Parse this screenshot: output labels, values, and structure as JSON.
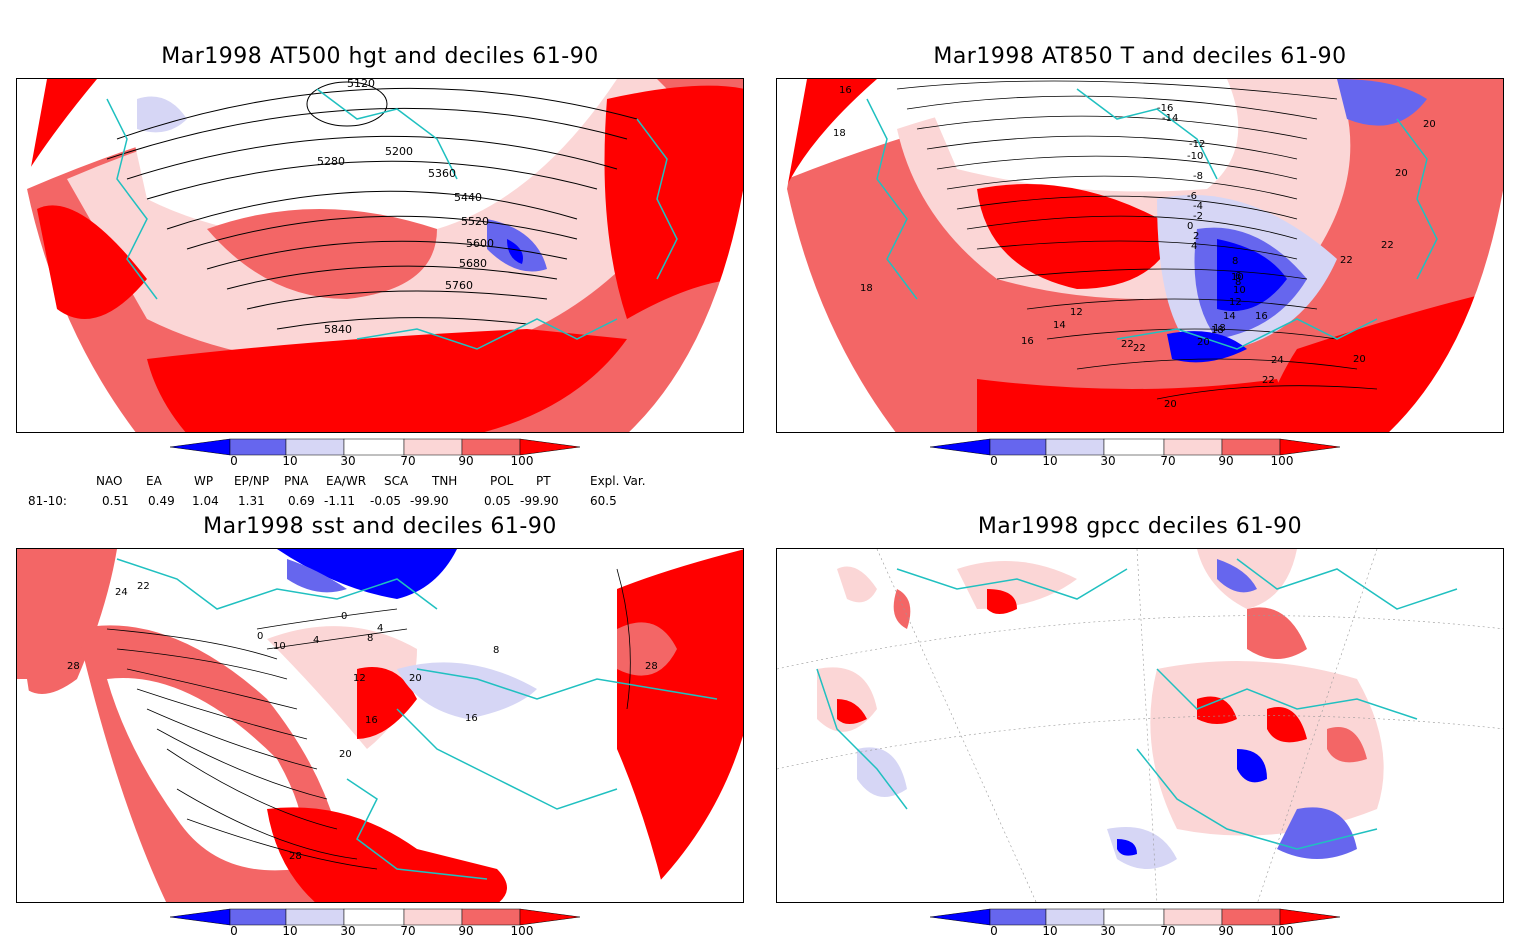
{
  "panels": [
    {
      "title": "Mar1998 AT500 hgt and deciles 61-90",
      "contour_labels": [
        "5120",
        "5200",
        "5280",
        "5360",
        "5440",
        "5520",
        "5600",
        "5680",
        "5760",
        "5840"
      ]
    },
    {
      "title": "Mar1998 AT850 T and deciles 61-90",
      "contour_labels": [
        "16",
        "18",
        "18",
        "20",
        "20",
        "22",
        "22",
        "20",
        "22",
        "24",
        "22",
        "20",
        "18",
        "16",
        "14",
        "12",
        "10",
        "8",
        "-16",
        "-14",
        "-12",
        "-10",
        "-8",
        "-6",
        "-4",
        "-2",
        "0",
        "2",
        "4",
        "6",
        "8",
        "10",
        "12",
        "14",
        "16",
        "18",
        "20",
        "22"
      ]
    },
    {
      "title": "Mar1998 sst and deciles 61-90",
      "contour_labels": [
        "24",
        "22",
        "28",
        "0",
        "10",
        "4",
        "0",
        "8",
        "4",
        "12",
        "16",
        "20",
        "28",
        "16",
        "8",
        "20",
        "28"
      ]
    },
    {
      "title": "Mar1998 gpcc deciles 61-90",
      "contour_labels": []
    }
  ],
  "colorbar": {
    "tick_labels": [
      "0",
      "10",
      "30",
      "70",
      "90",
      "100"
    ],
    "colors": [
      "#0000ff",
      "#6666ee",
      "#d6d6f5",
      "#ffffff",
      "#fbd6d6",
      "#f36666",
      "#ff0000"
    ]
  },
  "indices": {
    "headers": [
      "NAO",
      "EA",
      "WP",
      "EP/NP",
      "PNA",
      "EA/WR",
      "SCA",
      "TNH",
      "POL",
      "PT",
      "Expl. Var."
    ],
    "row_label": "81-10:",
    "values": [
      "0.51",
      "0.49",
      "1.04",
      "1.31",
      "0.69",
      "-1.11",
      "-0.05",
      "-99.90",
      "0.05",
      "-99.90",
      "60.5"
    ]
  }
}
